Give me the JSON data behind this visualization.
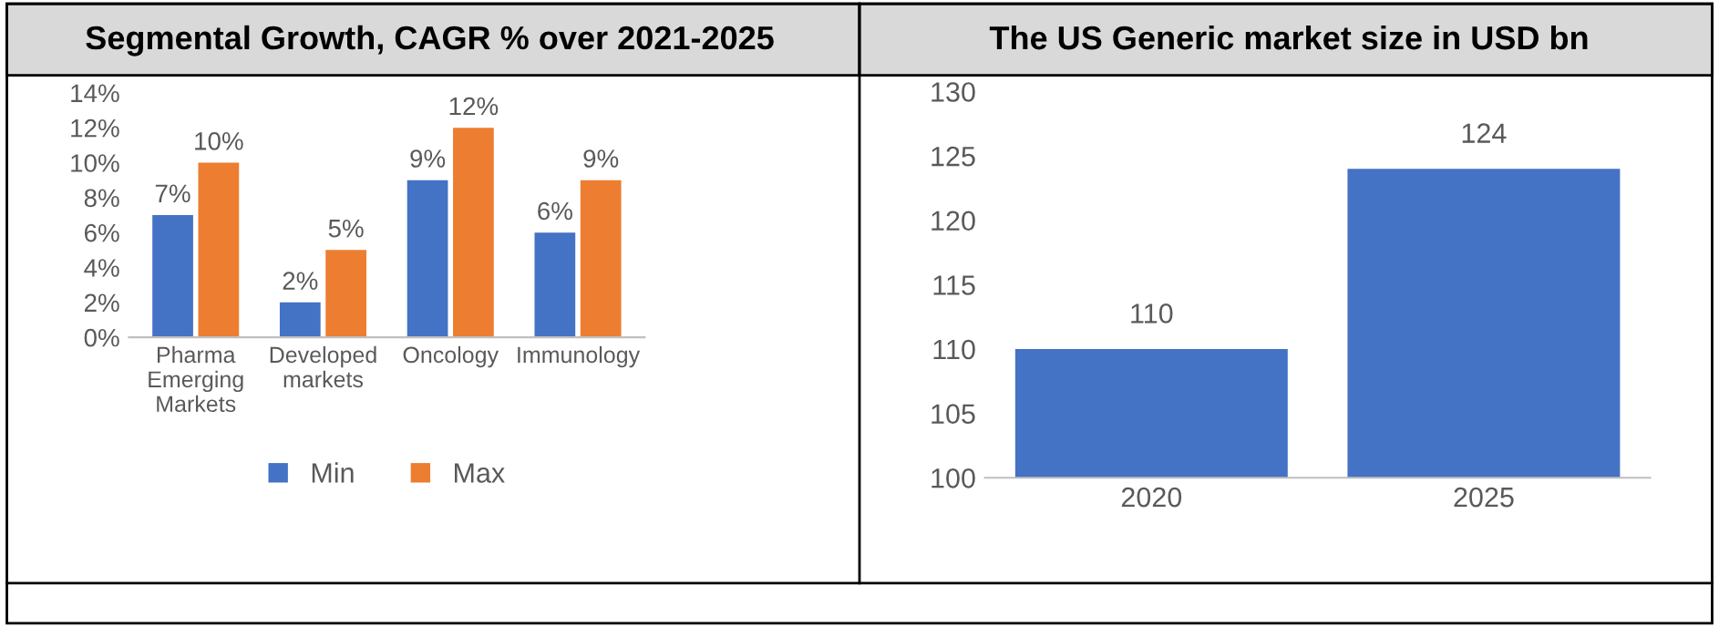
{
  "chart_data": [
    {
      "type": "bar",
      "title": "Segmental Growth, CAGR % over 2021-2025",
      "categories": [
        "Pharma\nEmerging\nMarkets",
        "Developed\nmarkets",
        "Oncology",
        "Immunology"
      ],
      "series": [
        {
          "name": "Min",
          "color": "#4472c4",
          "values": [
            7,
            2,
            9,
            6
          ],
          "value_labels": [
            "7%",
            "2%",
            "9%",
            "6%"
          ]
        },
        {
          "name": "Max",
          "color": "#ed7d31",
          "values": [
            10,
            5,
            12,
            9
          ],
          "value_labels": [
            "10%",
            "5%",
            "12%",
            "9%"
          ]
        }
      ],
      "ylim": [
        0,
        14
      ],
      "yticks": [
        {
          "value": 0,
          "label": "0%"
        },
        {
          "value": 2,
          "label": "2%"
        },
        {
          "value": 4,
          "label": "4%"
        },
        {
          "value": 6,
          "label": "6%"
        },
        {
          "value": 8,
          "label": "8%"
        },
        {
          "value": 10,
          "label": "10%"
        },
        {
          "value": 12,
          "label": "12%"
        },
        {
          "value": 14,
          "label": "14%"
        }
      ],
      "grid": false,
      "legend": "bottom"
    },
    {
      "type": "bar",
      "title": "The US Generic market size in USD bn",
      "categories": [
        "2020",
        "2025"
      ],
      "values": [
        110,
        124
      ],
      "color": "#4472c4",
      "ylim": [
        100,
        130
      ],
      "yticks": [
        100,
        105,
        110,
        115,
        120,
        125,
        130
      ],
      "grid": false,
      "data_labels": true
    }
  ]
}
